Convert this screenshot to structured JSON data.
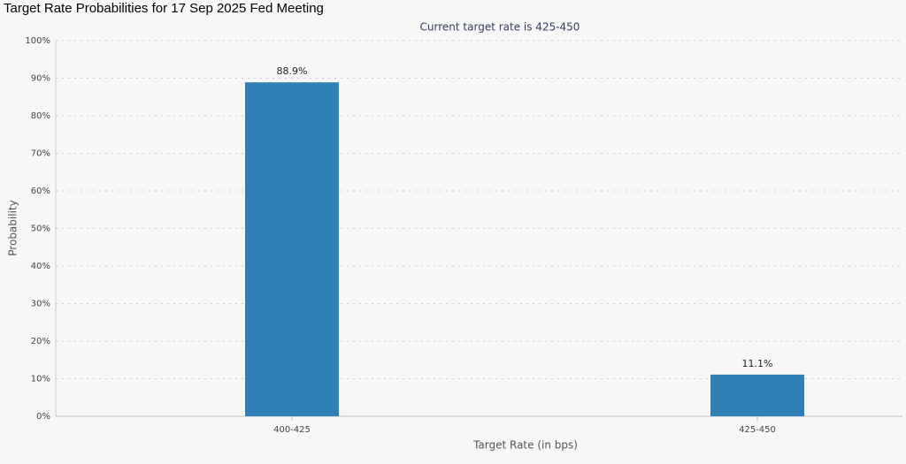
{
  "chart_data": {
    "type": "bar",
    "title": "Target Rate Probabilities for 17 Sep 2025 Fed Meeting",
    "subtitle": "Current target rate is 425-450",
    "x_label": "Target Rate (in bps)",
    "y_label": "Probability",
    "categories": [
      "400-425",
      "425-450"
    ],
    "values": [
      88.9,
      11.1
    ],
    "value_labels": [
      "88.9%",
      "11.1%"
    ],
    "color": "#2e80b7",
    "ylim": [
      0,
      100
    ],
    "yticks": [
      {
        "value": 0,
        "label": "0%"
      },
      {
        "value": 10,
        "label": "10%"
      },
      {
        "value": 20,
        "label": "20%"
      },
      {
        "value": 30,
        "label": "30%"
      },
      {
        "value": 40,
        "label": "40%"
      },
      {
        "value": 50,
        "label": "50%"
      },
      {
        "value": 60,
        "label": "60%"
      },
      {
        "value": 70,
        "label": "70%"
      },
      {
        "value": 80,
        "label": "80%"
      },
      {
        "value": 90,
        "label": "90%"
      },
      {
        "value": 100,
        "label": "100%"
      }
    ],
    "grid": true
  }
}
